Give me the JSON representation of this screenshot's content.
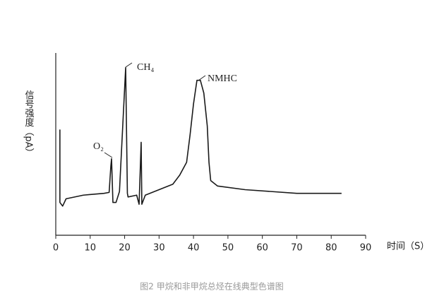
{
  "chart_data": {
    "type": "line",
    "x_label": "时间（S）",
    "y_label": "信号强度（pA）",
    "caption": "图2   甲烷和非甲烷总烃在线典型色谱图",
    "annotations": [
      "O₂",
      "CH₄",
      "NMHC"
    ],
    "xlim": [
      0,
      90
    ],
    "xticks": [
      0,
      10,
      20,
      30,
      40,
      50,
      60,
      70,
      80,
      90
    ],
    "ylim": [
      0,
      100
    ],
    "color": "#1a1a1a",
    "x": [
      1.2,
      1.2,
      2,
      3,
      8,
      14,
      15.5,
      16,
      16.2,
      16.6,
      17.5,
      18.5,
      20.3,
      20.8,
      21,
      23.5,
      24.2,
      24.8,
      25,
      26,
      30,
      34,
      36,
      38,
      39,
      40,
      41,
      42,
      43,
      44,
      44.5,
      45,
      47,
      55,
      70,
      83
    ],
    "values": [
      58,
      18,
      16,
      20,
      22,
      23,
      23.5,
      38,
      42,
      18,
      18,
      24,
      92,
      23,
      21,
      22,
      17,
      51,
      17,
      22,
      25,
      28,
      33,
      40,
      55,
      72,
      85,
      85,
      78,
      60,
      40,
      30,
      27,
      25,
      23,
      23
    ]
  }
}
